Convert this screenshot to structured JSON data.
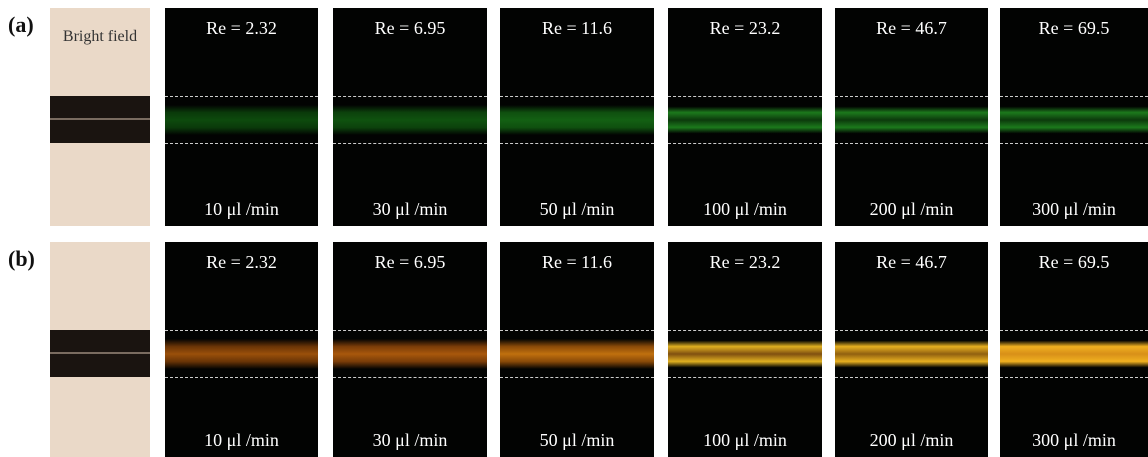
{
  "figure": {
    "rows": [
      {
        "label": "(a)",
        "bright_field_label": "Bright field",
        "panels": [
          {
            "re": "Re = 2.32",
            "flow": "10 μl /min"
          },
          {
            "re": "Re = 6.95",
            "flow": "30 μl /min"
          },
          {
            "re": "Re = 11.6",
            "flow": "50 μl /min"
          },
          {
            "re": "Re = 23.2",
            "flow": "100 μl /min"
          },
          {
            "re": "Re = 46.7",
            "flow": "200 μl /min"
          },
          {
            "re": "Re = 69.5",
            "flow": "300 μl /min"
          }
        ]
      },
      {
        "label": "(b)",
        "panels": [
          {
            "re": "Re = 2.32",
            "flow": "10 μl /min"
          },
          {
            "re": "Re = 6.95",
            "flow": "30 μl /min"
          },
          {
            "re": "Re = 11.6",
            "flow": "50 μl /min"
          },
          {
            "re": "Re = 23.2",
            "flow": "100 μl /min"
          },
          {
            "re": "Re = 46.7",
            "flow": "200 μl /min"
          },
          {
            "re": "Re = 69.5",
            "flow": "300 μl /min"
          }
        ]
      }
    ]
  }
}
